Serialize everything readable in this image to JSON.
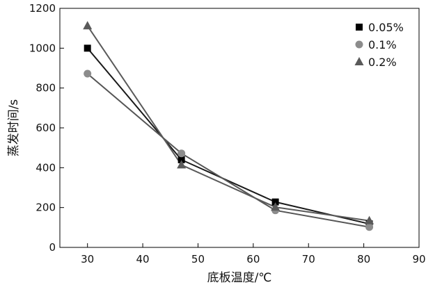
{
  "chart_data": {
    "type": "line",
    "title": "",
    "xlabel": "底板温度/℃",
    "ylabel": "蒸发时间/s",
    "xlim": [
      25,
      90
    ],
    "ylim": [
      0,
      1200
    ],
    "xticks": [
      30,
      40,
      50,
      60,
      70,
      80,
      90
    ],
    "yticks": [
      0,
      200,
      400,
      600,
      800,
      1000,
      1200
    ],
    "x": [
      30,
      47,
      64,
      81
    ],
    "series": [
      {
        "name": "0.05%",
        "marker": "square",
        "marker_color": "#000000",
        "line_color": "#1a1a1a",
        "values": [
          1000,
          440,
          228,
          118
        ]
      },
      {
        "name": "0.1%",
        "marker": "circle",
        "marker_color": "#8c8c8c",
        "line_color": "#555555",
        "values": [
          872,
          472,
          186,
          102
        ]
      },
      {
        "name": "0.2%",
        "marker": "triangle",
        "marker_color": "#5a5a5a",
        "line_color": "#5a5a5a",
        "values": [
          1112,
          414,
          202,
          134
        ]
      }
    ],
    "legend_position": "top-right",
    "grid": false
  }
}
